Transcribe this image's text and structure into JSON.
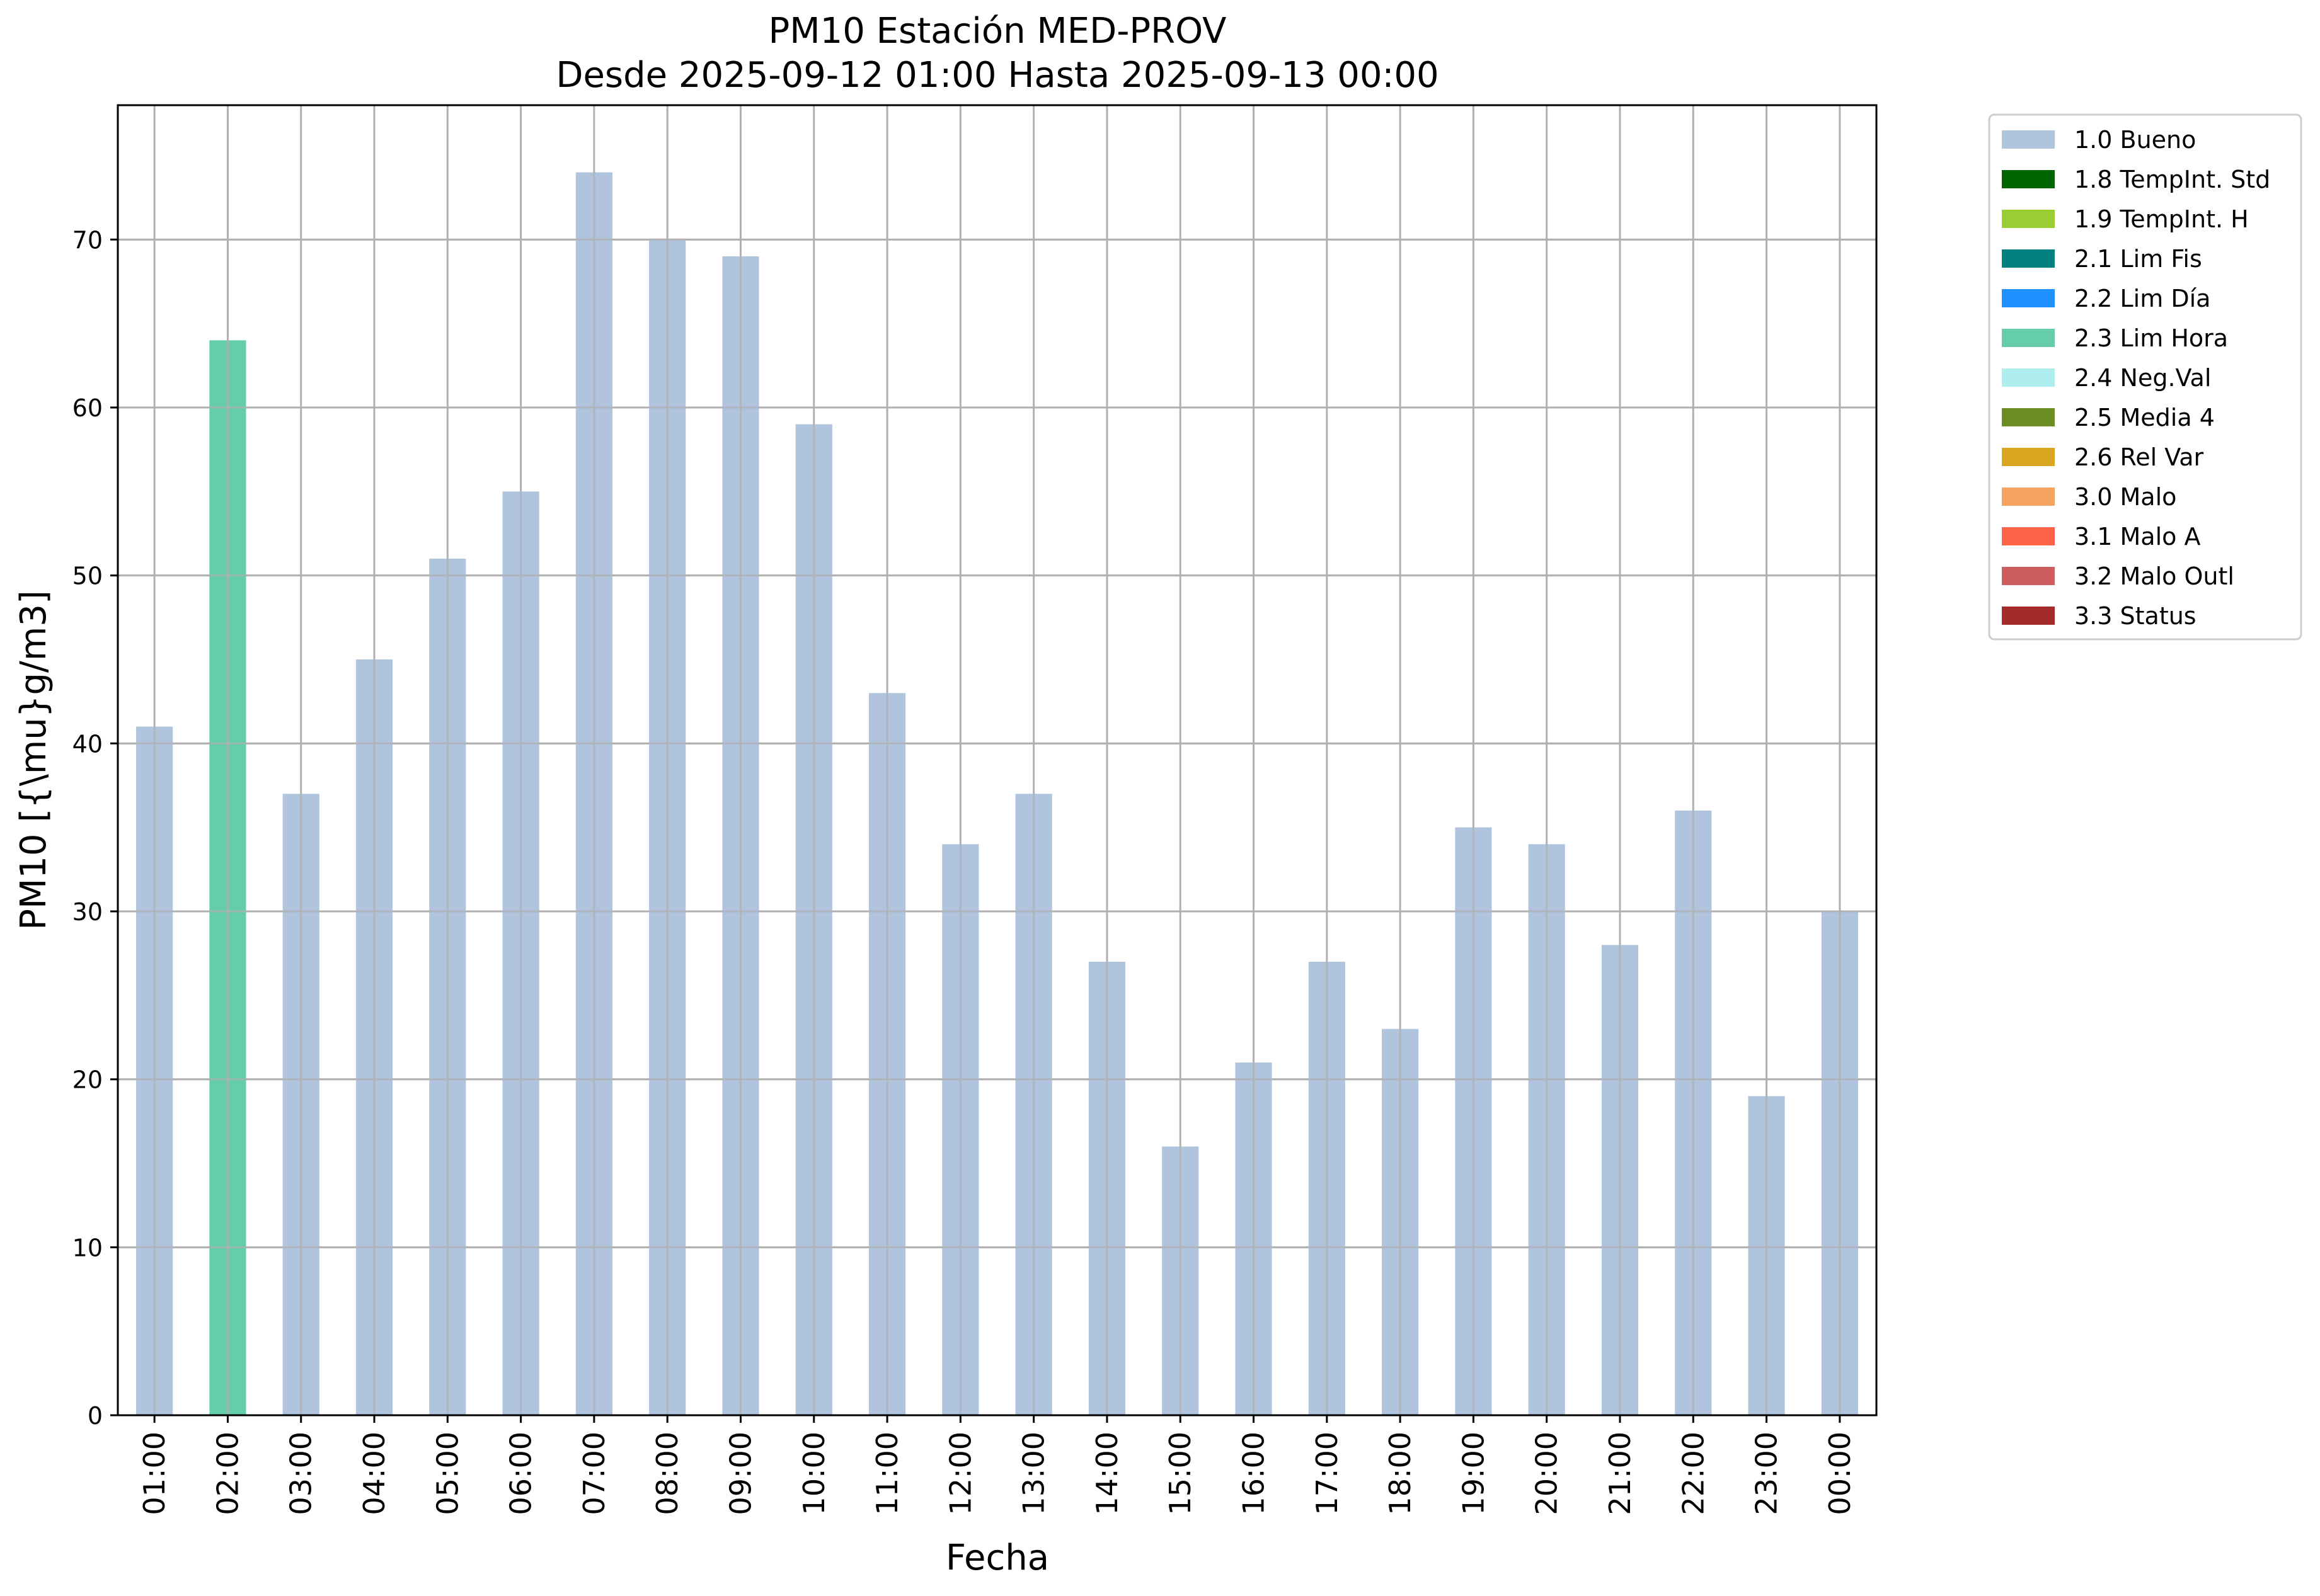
{
  "chart_data": {
    "type": "bar",
    "title": "PM10 Estación MED-PROV",
    "subtitle": "Desde 2025-09-12 01:00 Hasta 2025-09-13 00:00",
    "xlabel": "Fecha",
    "ylabel": "PM10 [{\\mu}g/m3]",
    "ylim": [
      0,
      78
    ],
    "yticks": [
      0,
      10,
      20,
      30,
      40,
      50,
      60,
      70
    ],
    "grid": true,
    "legend_position": "outside-right",
    "categories": [
      "01:00",
      "02:00",
      "03:00",
      "04:00",
      "05:00",
      "06:00",
      "07:00",
      "08:00",
      "09:00",
      "10:00",
      "11:00",
      "12:00",
      "13:00",
      "14:00",
      "15:00",
      "16:00",
      "17:00",
      "18:00",
      "19:00",
      "20:00",
      "21:00",
      "22:00",
      "23:00",
      "00:00"
    ],
    "values": [
      41,
      64,
      37,
      45,
      51,
      55,
      74,
      70,
      69,
      59,
      43,
      34,
      37,
      27,
      16,
      21,
      27,
      23,
      35,
      34,
      28,
      36,
      19,
      30
    ],
    "bar_flags": [
      "1.0 Bueno",
      "2.3 Lim Hora",
      "1.0 Bueno",
      "1.0 Bueno",
      "1.0 Bueno",
      "1.0 Bueno",
      "1.0 Bueno",
      "1.0 Bueno",
      "1.0 Bueno",
      "1.0 Bueno",
      "1.0 Bueno",
      "1.0 Bueno",
      "1.0 Bueno",
      "1.0 Bueno",
      "1.0 Bueno",
      "1.0 Bueno",
      "1.0 Bueno",
      "1.0 Bueno",
      "1.0 Bueno",
      "1.0 Bueno",
      "1.0 Bueno",
      "1.0 Bueno",
      "1.0 Bueno",
      "1.0 Bueno"
    ],
    "legend": [
      {
        "label": "1.0 Bueno",
        "color": "#b0c4de"
      },
      {
        "label": "1.8 TempInt. Std",
        "color": "#006400"
      },
      {
        "label": "1.9 TempInt. H",
        "color": "#9acd32"
      },
      {
        "label": "2.1 Lim Fis",
        "color": "#008080"
      },
      {
        "label": "2.2 Lim Día",
        "color": "#1e90ff"
      },
      {
        "label": "2.3 Lim Hora",
        "color": "#66cdaa"
      },
      {
        "label": "2.4 Neg.Val",
        "color": "#afeeee"
      },
      {
        "label": "2.5 Media 4",
        "color": "#6b8e23"
      },
      {
        "label": "2.6 Rel Var",
        "color": "#daa520"
      },
      {
        "label": "3.0 Malo",
        "color": "#f4a460"
      },
      {
        "label": "3.1 Malo A",
        "color": "#ff6347"
      },
      {
        "label": "3.2 Malo Outl",
        "color": "#cd5c5c"
      },
      {
        "label": "3.3 Status",
        "color": "#a52a2a"
      }
    ]
  }
}
